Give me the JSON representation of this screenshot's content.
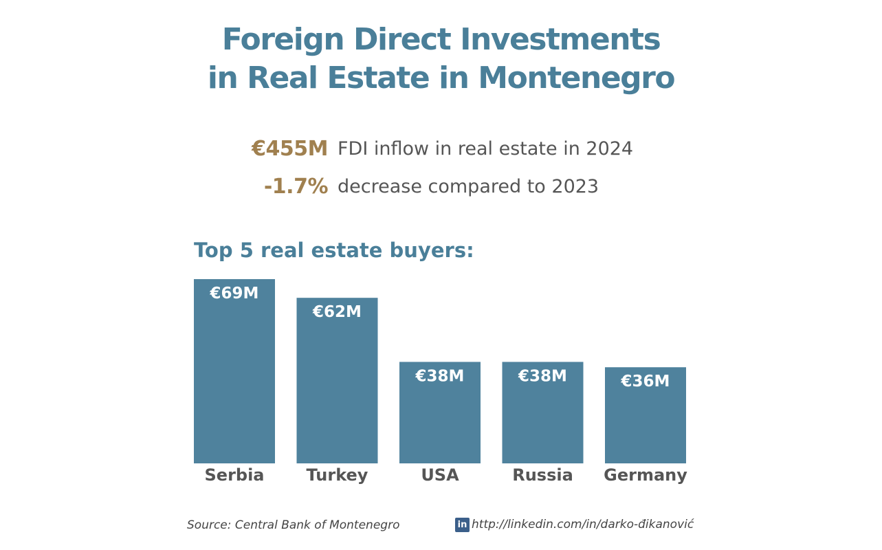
{
  "header": {
    "title_line1": "Foreign Direct Investments",
    "title_line2": "in Real Estate in Montenegro"
  },
  "stats": [
    {
      "value": "€455M",
      "text": "FDI inflow in real estate in 2024"
    },
    {
      "value": "-1.7%",
      "text": "decrease compared to 2023"
    }
  ],
  "chart_section": {
    "title": "Top 5 real estate buyers:"
  },
  "chart_data": {
    "type": "bar",
    "title": "Top 5 real estate buyers:",
    "xlabel": "",
    "ylabel": "",
    "categories": [
      "Serbia",
      "Turkey",
      "USA",
      "Russia",
      "Germany"
    ],
    "values": [
      69,
      62,
      38,
      38,
      36
    ],
    "value_labels": [
      "€69M",
      "€62M",
      "€38M",
      "€38M",
      "€36M"
    ],
    "unit": "€M",
    "ylim": [
      0,
      69
    ],
    "grid": false,
    "legend": "none",
    "bar_color": "#4f829d",
    "label_color": "#ffffff",
    "category_label_color": "#555555"
  },
  "footer": {
    "source": "Source: Central Bank of Montenegro",
    "linkedin_icon_label": "in",
    "linkedin_icon": "linkedin-icon",
    "link_text": "http://linkedin.com/in/darko-đikanović"
  },
  "colors": {
    "title": "#4a7f99",
    "accent": "#a0804f",
    "body_text": "#555555",
    "bar": "#4f829d"
  }
}
